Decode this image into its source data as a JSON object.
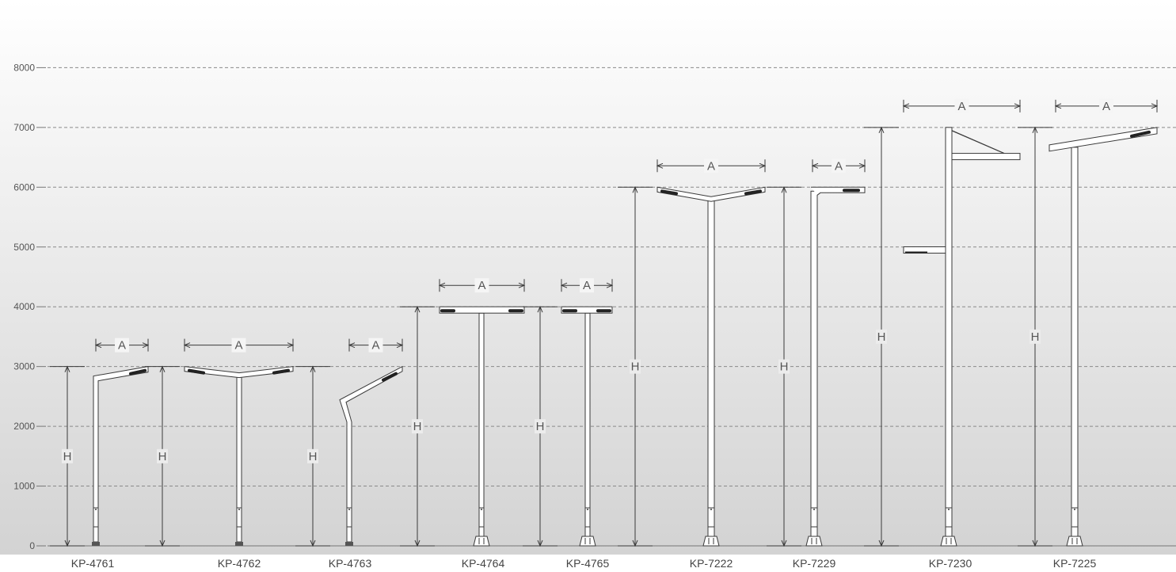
{
  "chart_data": {
    "type": "diagram",
    "y_ticks": [
      "0",
      "1000",
      "2000",
      "3000",
      "4000",
      "5000",
      "6000",
      "7000",
      "8000"
    ],
    "y_tick_values": [
      0,
      1000,
      2000,
      3000,
      4000,
      5000,
      6000,
      7000,
      8000
    ],
    "ylim": [
      0,
      8000
    ],
    "grid": true,
    "dimension_labels": {
      "height": "H",
      "arm": "A"
    },
    "poles": [
      {
        "model": "KP-4761",
        "height": 3000,
        "style": "single-bent"
      },
      {
        "model": "KP-4762",
        "height": 3000,
        "style": "double-y"
      },
      {
        "model": "KP-4763",
        "height": 3000,
        "style": "angled-single"
      },
      {
        "model": "KP-4764",
        "height": 4000,
        "style": "double-t"
      },
      {
        "model": "KP-4765",
        "height": 4000,
        "style": "double-t-short"
      },
      {
        "model": "KP-7222",
        "height": 6000,
        "style": "double-y"
      },
      {
        "model": "KP-7229",
        "height": 6000,
        "style": "single-flat"
      },
      {
        "model": "KP-7230",
        "height": 7000,
        "style": "bracket"
      },
      {
        "model": "KP-7225",
        "height": 7000,
        "style": "tilted-single"
      }
    ]
  }
}
